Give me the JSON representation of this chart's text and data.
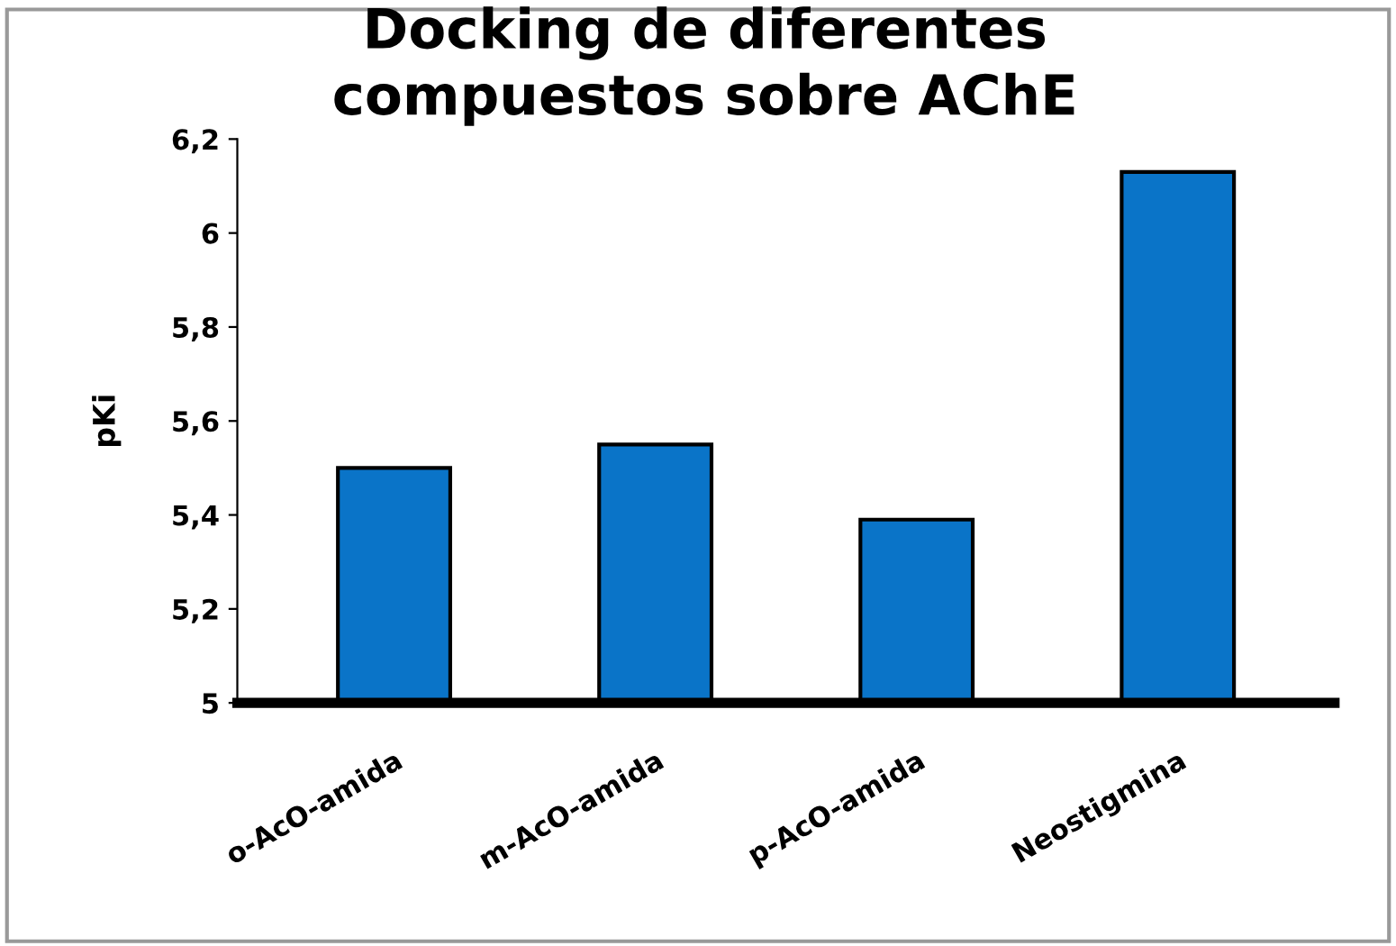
{
  "chart_data": {
    "type": "bar",
    "title": "Docking de diferentes\ncompuestos sobre AChE",
    "ylabel": "pKi",
    "categories": [
      "o-AcO-amida",
      "m-AcO-amida",
      "p-AcO-amida",
      "Neostigmina"
    ],
    "values": [
      5.5,
      5.55,
      5.39,
      6.13
    ],
    "color": "#0a74c8",
    "ylim": [
      5,
      6.2
    ],
    "yticks": [
      {
        "value": 5,
        "label": "5"
      },
      {
        "value": 5.2,
        "label": "5,2"
      },
      {
        "value": 5.4,
        "label": "5,4"
      },
      {
        "value": 5.6,
        "label": "5,6"
      },
      {
        "value": 5.8,
        "label": "5,8"
      },
      {
        "value": 6,
        "label": "6"
      },
      {
        "value": 6.2,
        "label": "6,2"
      }
    ],
    "grid": false
  }
}
